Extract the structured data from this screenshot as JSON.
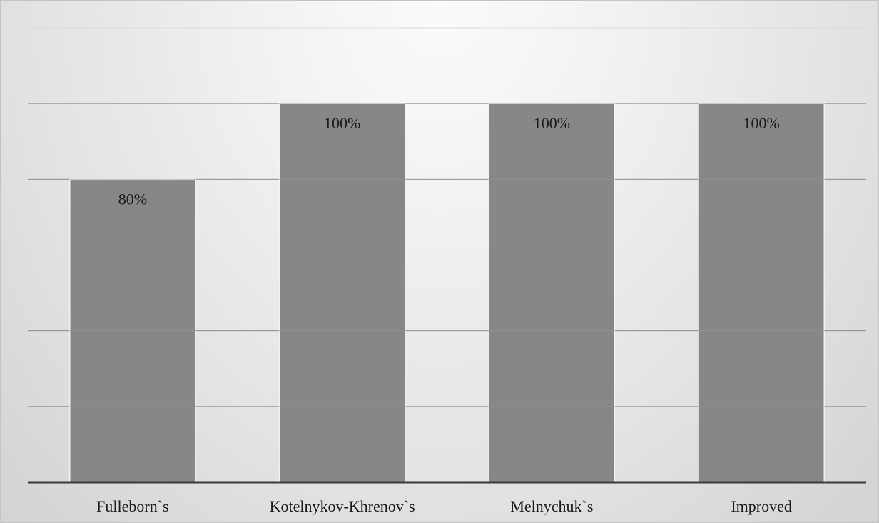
{
  "chart_data": {
    "type": "bar",
    "categories": [
      "Fulleborn`s",
      "Kotelnykov-Khrenov`s",
      "Melnychuk`s",
      "Improved"
    ],
    "values": [
      80,
      100,
      100,
      100
    ],
    "data_labels": [
      "80%",
      "100%",
      "100%",
      "100%"
    ],
    "title": "",
    "xlabel": "",
    "ylabel": "",
    "ylim": [
      0,
      120
    ],
    "y_gridlines": [
      20,
      40,
      60,
      80,
      100,
      120
    ],
    "grid": true,
    "legend": "none",
    "colors": {
      "bar": "#878787",
      "bar_edge": "#f2f2f2",
      "gridline": "#8c8c8c",
      "axis": "#3a3a3a",
      "text": "#1a1a1a"
    }
  }
}
